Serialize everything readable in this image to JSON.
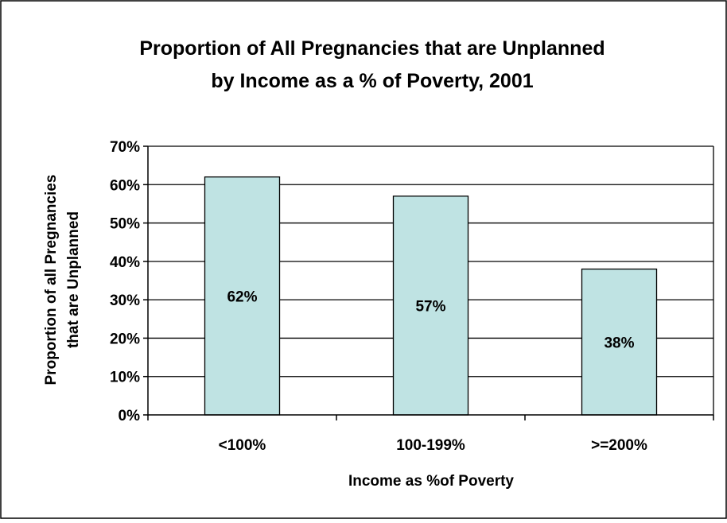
{
  "chart_data": {
    "type": "bar",
    "title_line1": "Proportion of All Pregnancies that are Unplanned",
    "title_line2": "by Income as a % of Poverty, 2001",
    "categories": [
      "<100%",
      "100-199%",
      ">=200%"
    ],
    "values": [
      62,
      57,
      38
    ],
    "data_labels": [
      "62%",
      "57%",
      "38%"
    ],
    "xlabel": "Income as %of Poverty",
    "ylabel_line1": "Proportion of all Pregnancies",
    "ylabel_line2": "that are Unplanned",
    "ylim": [
      0,
      70
    ],
    "yticks": [
      0,
      10,
      20,
      30,
      40,
      50,
      60,
      70
    ],
    "ytick_labels": [
      "0%",
      "10%",
      "20%",
      "30%",
      "40%",
      "50%",
      "60%",
      "70%"
    ],
    "grid": true,
    "legend": "none",
    "bar_color": "#bfe3e3",
    "bar_stroke": "#000000"
  }
}
